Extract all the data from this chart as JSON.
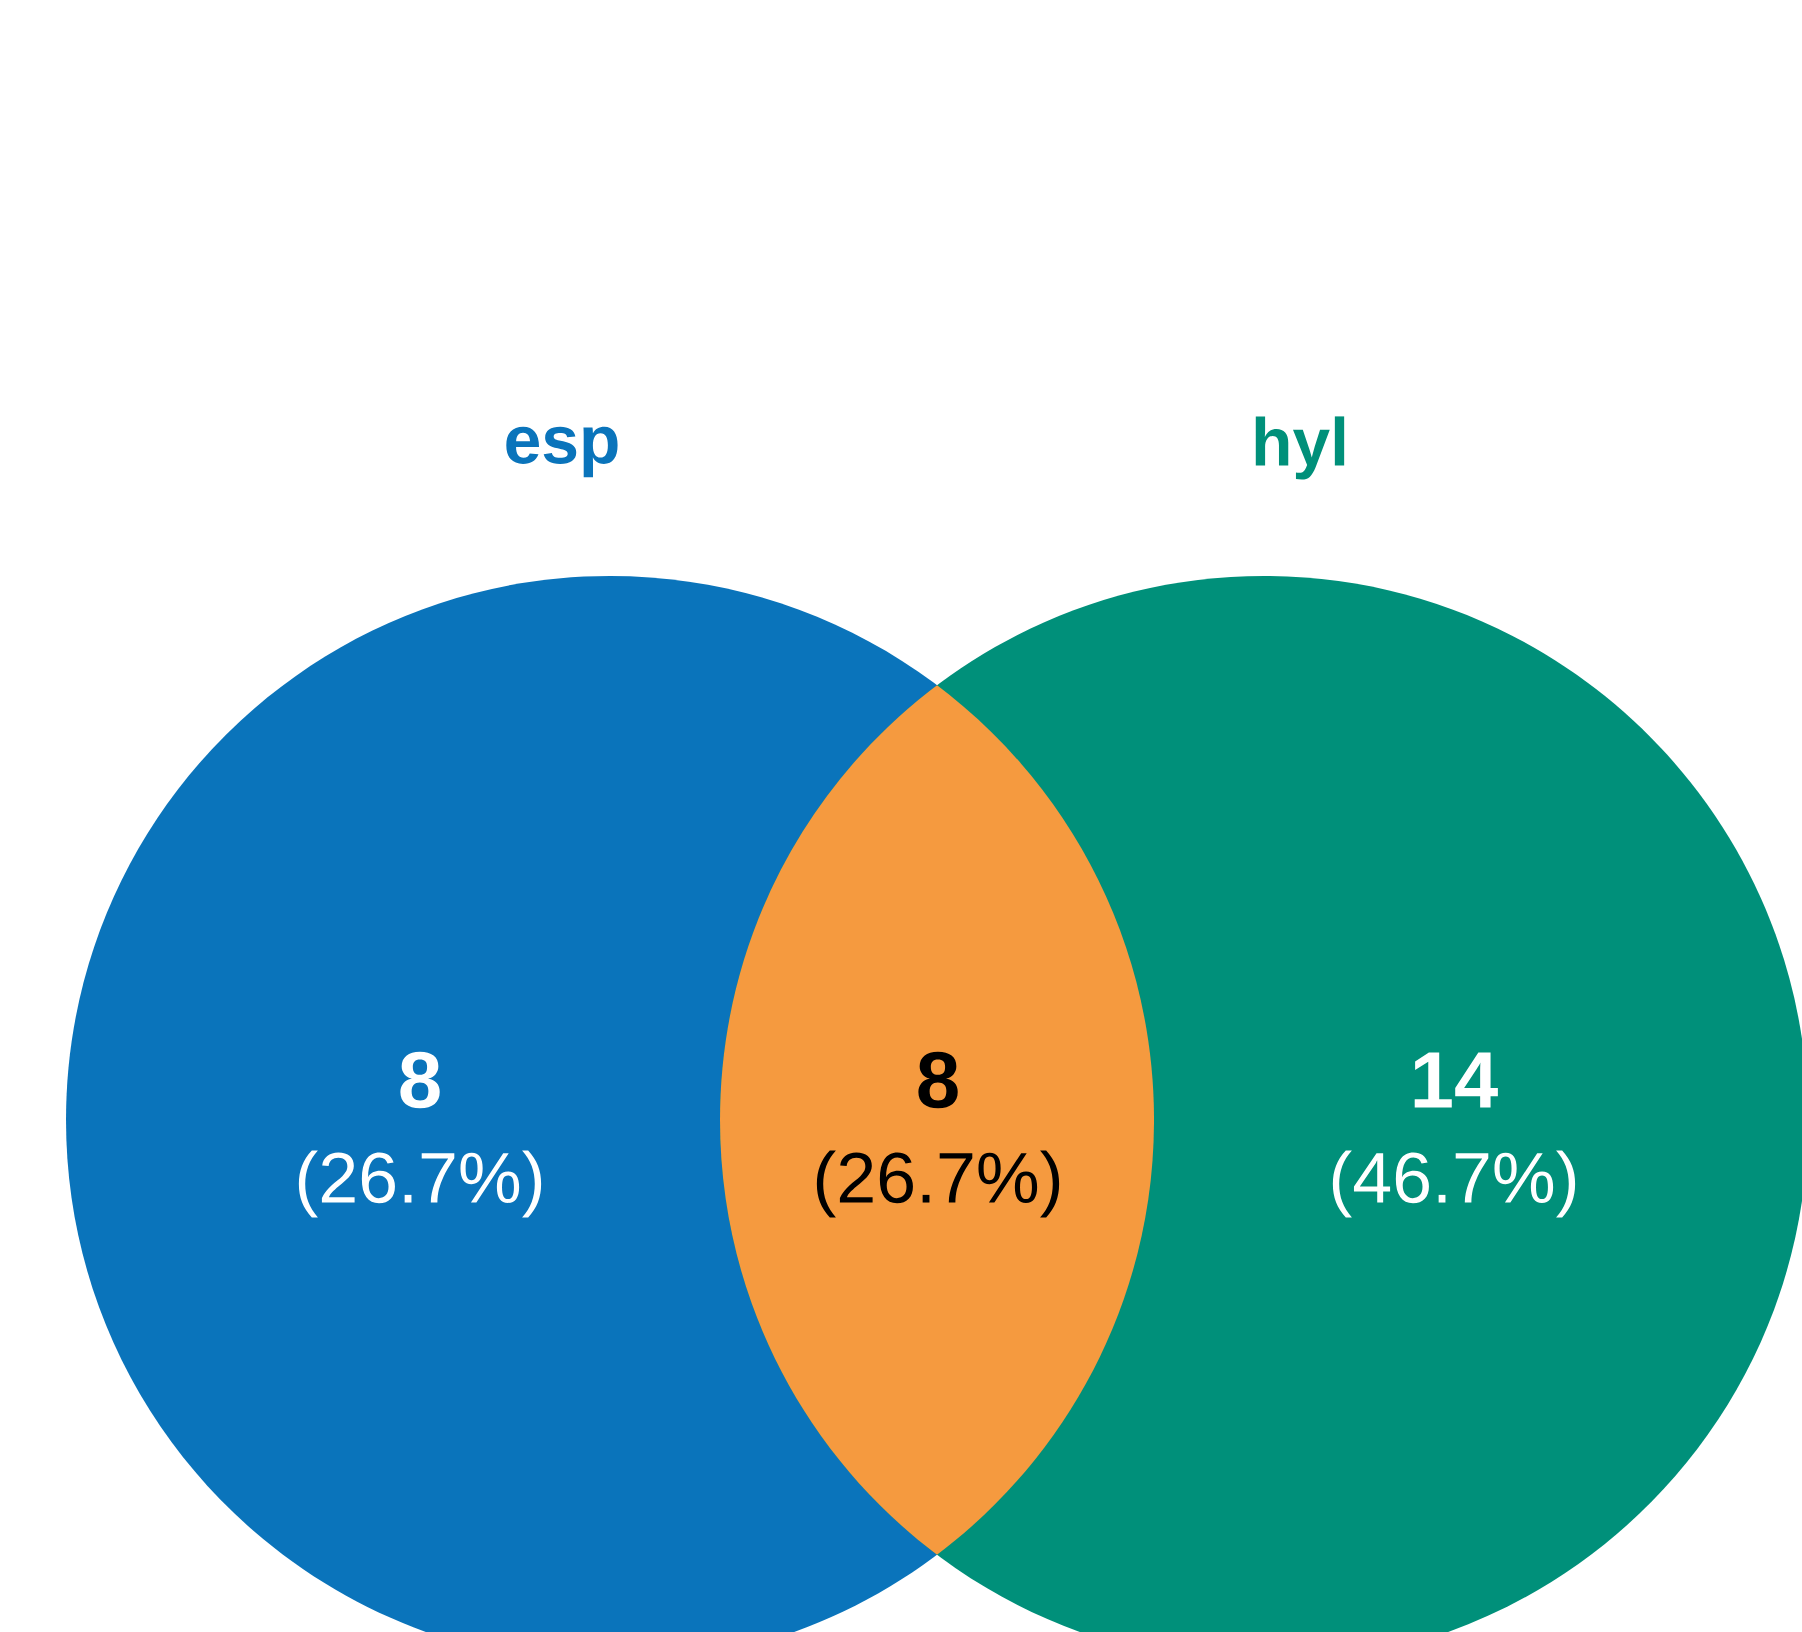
{
  "chart_data": {
    "type": "other",
    "categories": [
      "esp",
      null,
      "hyl"
    ],
    "values": [
      8,
      8,
      14
    ],
    "data_labels": true,
    "annotations": [
      "(26.7%)",
      "(26.7%)",
      "(46.7%)"
    ],
    "colors": [
      "#0a74bb",
      "#f59a3f",
      "#00907a"
    ]
  }
}
